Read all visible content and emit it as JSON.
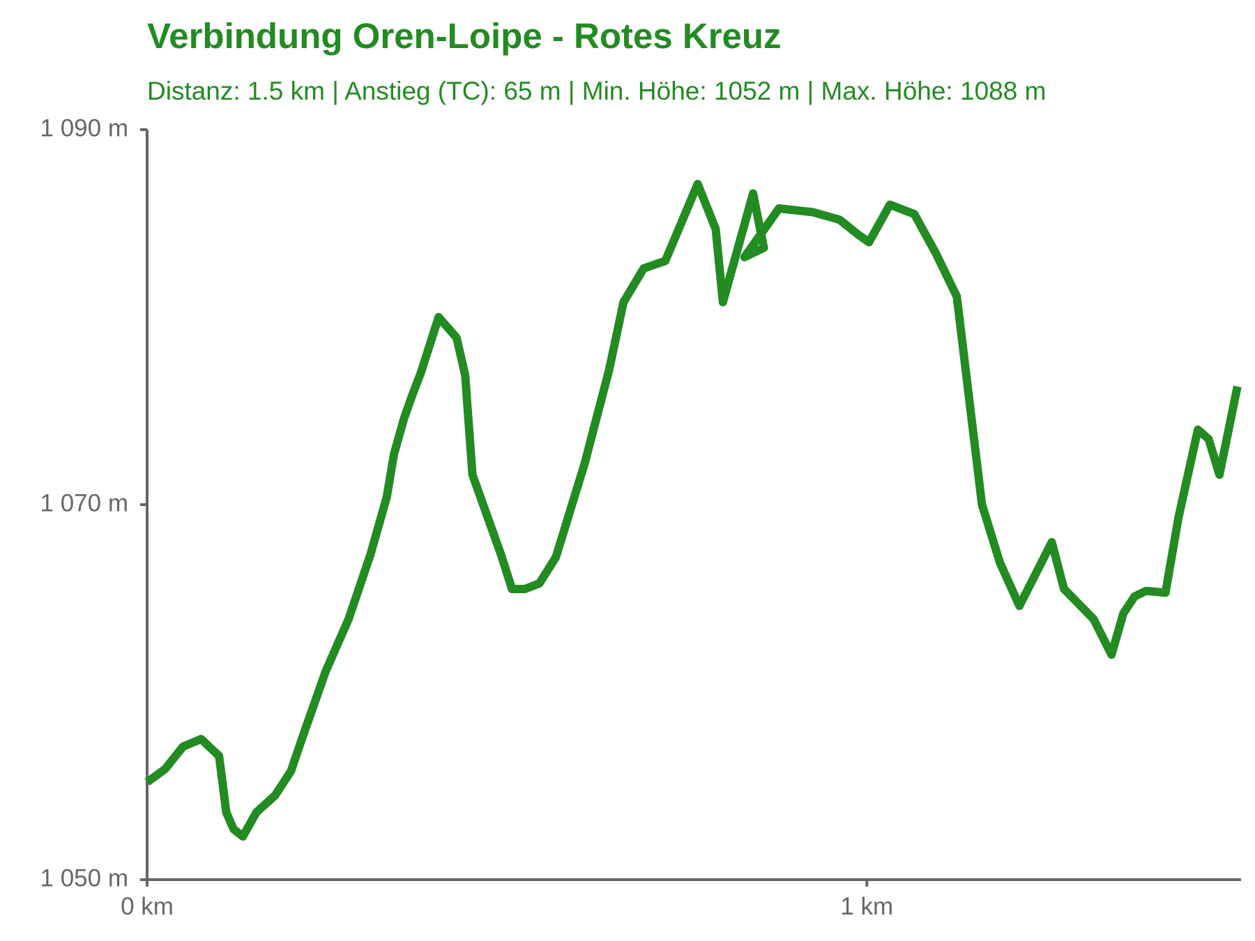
{
  "chart_data": {
    "type": "line",
    "title": "Verbindung Oren-Loipe - Rotes Kreuz",
    "subtitle": "Distanz: 1.5 km | Anstieg (TC): 65 m | Min. Höhe: 1052 m | Max. Höhe: 1088 m",
    "xlabel": "",
    "ylabel": "",
    "xlim": [
      0,
      1.52
    ],
    "ylim": [
      1050,
      1090
    ],
    "x_ticks": [
      {
        "value": 0,
        "label": "0 km"
      },
      {
        "value": 1,
        "label": "1 km"
      }
    ],
    "y_ticks": [
      {
        "value": 1050,
        "label": "1 050 m"
      },
      {
        "value": 1070,
        "label": "1 070 m"
      },
      {
        "value": 1090,
        "label": "1 090 m"
      }
    ],
    "grid": false,
    "legend": "none",
    "colors": {
      "line": "#228B22",
      "axis": "#666666",
      "text": "#228B22",
      "tick_text": "#666666"
    },
    "series": [
      {
        "x": [
          0,
          0.025,
          0.05,
          0.075,
          0.1,
          0.11,
          0.12,
          0.133,
          0.152,
          0.178,
          0.2,
          0.215,
          0.248,
          0.28,
          0.31,
          0.333,
          0.343,
          0.357,
          0.368,
          0.38,
          0.405,
          0.43,
          0.442,
          0.452,
          0.492,
          0.507,
          0.525,
          0.545,
          0.568,
          0.608,
          0.642,
          0.662,
          0.69,
          0.72,
          0.743,
          0.765,
          0.79,
          0.8,
          0.842,
          0.857,
          0.83,
          0.878,
          0.925,
          0.962,
          0.988,
          1.003,
          1.022,
          1.032,
          1.066,
          1.096,
          1.125,
          1.16,
          1.185,
          1.212,
          1.257,
          1.274,
          1.315,
          1.34,
          1.3565,
          1.372,
          1.388,
          1.415,
          1.433,
          1.46,
          1.475,
          1.49,
          1.515
        ],
        "y": [
          1055.2,
          1055.9,
          1057.1,
          1057.5,
          1056.6,
          1053.6,
          1052.7,
          1052.3,
          1053.6,
          1054.5,
          1055.8,
          1057.5,
          1061.1,
          1063.9,
          1067.3,
          1070.4,
          1072.7,
          1074.6,
          1075.8,
          1077.0,
          1080.0,
          1078.9,
          1076.9,
          1071.6,
          1067.3,
          1065.5,
          1065.5,
          1065.8,
          1067.2,
          1072.2,
          1077.2,
          1080.8,
          1082.6,
          1083.0,
          1085.1,
          1087.1,
          1084.7,
          1080.8,
          1086.6,
          1083.7,
          1083.2,
          1085.8,
          1085.6,
          1085.2,
          1084.4,
          1084.0,
          1085.3,
          1086.0,
          1085.5,
          1083.4,
          1081.1,
          1070.0,
          1066.9,
          1064.6,
          1068.0,
          1065.5,
          1063.9,
          1062.0,
          1064.2,
          1065.1,
          1065.4,
          1065.3,
          1069.3,
          1074.0,
          1073.5,
          1071.6,
          1076.3
        ]
      }
    ]
  }
}
